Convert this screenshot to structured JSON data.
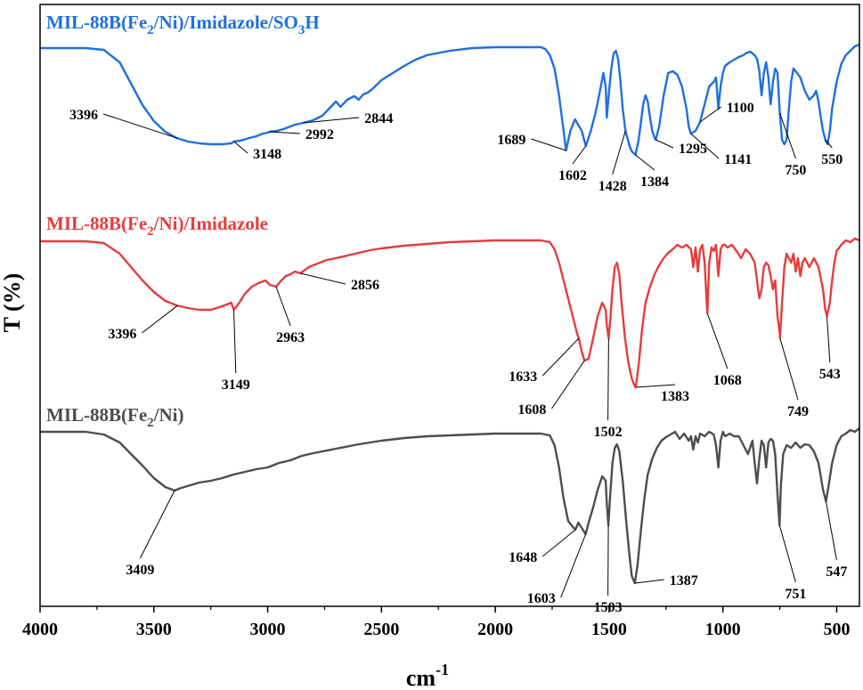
{
  "chart_data": {
    "type": "line",
    "xlabel": "cm",
    "xlabel_sup": "-1",
    "ylabel": "T (%)",
    "xlim": [
      4000,
      400
    ],
    "x_reversed": true,
    "xticks": [
      "4000",
      "3500",
      "3000",
      "2500",
      "2000",
      "1500",
      "1000",
      "500"
    ],
    "y_ticks_shown": false,
    "grid": false,
    "series": [
      {
        "name_parts": [
          "MIL-88B(Fe",
          "2",
          "/Ni)/Imidazole/SO",
          "3",
          "H"
        ],
        "color": "#1f6fe0",
        "x": [
          4000,
          3800,
          3720,
          3650,
          3600,
          3550,
          3500,
          3450,
          3400,
          3350,
          3300,
          3250,
          3200,
          3160,
          3148,
          3120,
          3080,
          3050,
          3020,
          3000,
          2992,
          2960,
          2930,
          2900,
          2880,
          2860,
          2844,
          2800,
          2760,
          2730,
          2700,
          2680,
          2650,
          2620,
          2600,
          2580,
          2560,
          2540,
          2500,
          2450,
          2400,
          2350,
          2300,
          2200,
          2100,
          2000,
          1900,
          1800,
          1780,
          1760,
          1740,
          1720,
          1700,
          1689,
          1670,
          1650,
          1620,
          1602,
          1580,
          1560,
          1540,
          1525,
          1515,
          1510,
          1500,
          1490,
          1480,
          1470,
          1460,
          1450,
          1440,
          1428,
          1410,
          1400,
          1384,
          1370,
          1360,
          1350,
          1340,
          1330,
          1320,
          1310,
          1300,
          1295,
          1280,
          1260,
          1240,
          1220,
          1200,
          1180,
          1160,
          1150,
          1141,
          1120,
          1100,
          1080,
          1060,
          1040,
          1030,
          1020,
          1010,
          1000,
          990,
          970,
          950,
          930,
          910,
          900,
          880,
          860,
          850,
          840,
          830,
          820,
          810,
          800,
          790,
          780,
          770,
          760,
          750,
          740,
          730,
          720,
          710,
          700,
          690,
          680,
          660,
          640,
          620,
          600,
          590,
          580,
          570,
          560,
          550,
          540,
          530,
          520,
          500,
          480,
          460,
          440,
          420,
          400
        ],
        "y": [
          0.02,
          0.02,
          0.04,
          0.18,
          0.42,
          0.66,
          0.84,
          0.96,
          1.03,
          1.07,
          1.09,
          1.1,
          1.1,
          1.09,
          1.07,
          1.06,
          1.03,
          1.01,
          0.98,
          0.97,
          0.96,
          0.95,
          0.93,
          0.9,
          0.88,
          0.87,
          0.86,
          0.83,
          0.78,
          0.7,
          0.62,
          0.68,
          0.6,
          0.56,
          0.6,
          0.54,
          0.52,
          0.48,
          0.38,
          0.3,
          0.22,
          0.15,
          0.1,
          0.05,
          0.02,
          0.01,
          0.01,
          0.01,
          0.03,
          0.1,
          0.25,
          0.55,
          0.95,
          1.17,
          0.95,
          0.82,
          0.95,
          1.12,
          0.95,
          0.75,
          0.5,
          0.3,
          0.45,
          0.8,
          0.5,
          0.25,
          0.08,
          0.05,
          0.15,
          0.4,
          0.7,
          0.95,
          1.12,
          1.18,
          1.22,
          1.05,
          0.85,
          0.65,
          0.55,
          0.62,
          0.8,
          0.95,
          1.03,
          1.05,
          0.9,
          0.55,
          0.3,
          0.28,
          0.32,
          0.45,
          0.7,
          0.9,
          0.98,
          0.95,
          0.85,
          0.65,
          0.45,
          0.4,
          0.35,
          0.7,
          0.45,
          0.3,
          0.22,
          0.18,
          0.15,
          0.12,
          0.1,
          0.08,
          0.06,
          0.1,
          0.14,
          0.28,
          0.55,
          0.3,
          0.18,
          0.35,
          0.65,
          0.4,
          0.25,
          0.3,
          0.75,
          1.05,
          1.1,
          1.05,
          0.7,
          0.4,
          0.25,
          0.28,
          0.35,
          0.5,
          0.6,
          0.55,
          0.5,
          0.62,
          0.8,
          0.95,
          1.05,
          1.1,
          0.95,
          0.7,
          0.4,
          0.2,
          0.1,
          0.05,
          0.0,
          -0.02
        ]
      },
      {
        "name_parts": [
          "MIL-88B(Fe",
          "2",
          "/Ni)/Imidazole"
        ],
        "color": "#e63c3c",
        "x": [
          4000,
          3800,
          3720,
          3650,
          3600,
          3550,
          3500,
          3450,
          3400,
          3350,
          3300,
          3250,
          3200,
          3160,
          3149,
          3130,
          3100,
          3070,
          3040,
          3010,
          2990,
          2963,
          2940,
          2920,
          2900,
          2880,
          2856,
          2820,
          2780,
          2740,
          2700,
          2650,
          2600,
          2550,
          2500,
          2400,
          2300,
          2200,
          2100,
          2000,
          1900,
          1800,
          1760,
          1740,
          1720,
          1700,
          1680,
          1660,
          1640,
          1633,
          1620,
          1608,
          1590,
          1570,
          1550,
          1530,
          1515,
          1510,
          1502,
          1495,
          1485,
          1475,
          1465,
          1455,
          1445,
          1430,
          1415,
          1400,
          1390,
          1383,
          1370,
          1355,
          1340,
          1320,
          1300,
          1280,
          1260,
          1240,
          1220,
          1200,
          1180,
          1160,
          1140,
          1130,
          1120,
          1110,
          1100,
          1090,
          1080,
          1070,
          1068,
          1060,
          1050,
          1040,
          1030,
          1020,
          1010,
          1000,
          990,
          980,
          960,
          940,
          920,
          900,
          880,
          860,
          850,
          840,
          830,
          820,
          810,
          800,
          790,
          780,
          770,
          760,
          750,
          749,
          740,
          730,
          720,
          700,
          690,
          680,
          670,
          660,
          650,
          640,
          620,
          600,
          580,
          560,
          550,
          543,
          530,
          520,
          510,
          500,
          480,
          460,
          440,
          420,
          400
        ],
        "y": [
          0.01,
          0.01,
          0.03,
          0.15,
          0.3,
          0.45,
          0.58,
          0.68,
          0.73,
          0.76,
          0.78,
          0.78,
          0.74,
          0.7,
          0.78,
          0.72,
          0.6,
          0.52,
          0.48,
          0.45,
          0.5,
          0.52,
          0.45,
          0.4,
          0.38,
          0.35,
          0.37,
          0.3,
          0.26,
          0.22,
          0.2,
          0.17,
          0.14,
          0.11,
          0.09,
          0.06,
          0.04,
          0.02,
          0.01,
          0.0,
          0.0,
          0.0,
          0.02,
          0.1,
          0.25,
          0.45,
          0.65,
          0.85,
          1.05,
          1.1,
          1.25,
          1.35,
          1.33,
          1.1,
          0.85,
          0.7,
          0.78,
          0.95,
          1.1,
          0.9,
          0.55,
          0.3,
          0.25,
          0.38,
          0.7,
          1.1,
          1.38,
          1.55,
          1.62,
          1.65,
          1.4,
          1.0,
          0.7,
          0.52,
          0.38,
          0.28,
          0.2,
          0.14,
          0.1,
          0.05,
          0.08,
          0.05,
          0.1,
          0.3,
          0.08,
          0.35,
          0.1,
          0.05,
          0.25,
          0.75,
          0.82,
          0.25,
          0.08,
          0.12,
          0.05,
          0.4,
          0.1,
          0.05,
          0.05,
          0.08,
          0.05,
          0.12,
          0.2,
          0.1,
          0.15,
          0.25,
          0.45,
          0.65,
          0.55,
          0.3,
          0.25,
          0.28,
          0.4,
          0.55,
          0.45,
          0.85,
          1.05,
          1.1,
          0.7,
          0.3,
          0.15,
          0.25,
          0.15,
          0.35,
          0.2,
          0.4,
          0.25,
          0.2,
          0.3,
          0.2,
          0.3,
          0.55,
          0.78,
          0.85,
          0.7,
          0.45,
          0.25,
          0.12,
          0.05,
          0.0,
          0.02,
          -0.02,
          0.0
        ]
      },
      {
        "name_parts": [
          "MIL-88B(Fe",
          "2",
          "/Ni)"
        ],
        "color": "#4d4d4d",
        "x": [
          4000,
          3800,
          3720,
          3650,
          3600,
          3550,
          3500,
          3450,
          3409,
          3380,
          3340,
          3300,
          3250,
          3200,
          3150,
          3100,
          3050,
          3000,
          2950,
          2900,
          2850,
          2800,
          2700,
          2600,
          2500,
          2400,
          2300,
          2200,
          2100,
          2000,
          1900,
          1800,
          1760,
          1740,
          1720,
          1700,
          1680,
          1665,
          1648,
          1635,
          1620,
          1603,
          1590,
          1570,
          1550,
          1530,
          1515,
          1510,
          1503,
          1495,
          1485,
          1475,
          1465,
          1455,
          1440,
          1425,
          1410,
          1400,
          1387,
          1375,
          1360,
          1345,
          1330,
          1310,
          1290,
          1270,
          1250,
          1230,
          1210,
          1190,
          1170,
          1150,
          1140,
          1130,
          1120,
          1110,
          1100,
          1080,
          1060,
          1040,
          1030,
          1020,
          1010,
          1000,
          990,
          970,
          950,
          930,
          910,
          890,
          870,
          860,
          850,
          840,
          830,
          820,
          810,
          800,
          790,
          780,
          770,
          760,
          751,
          745,
          735,
          720,
          700,
          680,
          660,
          640,
          620,
          600,
          580,
          560,
          547,
          535,
          520,
          500,
          480,
          460,
          440,
          420,
          400
        ],
        "y": [
          0.0,
          0.0,
          0.03,
          0.12,
          0.25,
          0.38,
          0.52,
          0.62,
          0.66,
          0.63,
          0.6,
          0.57,
          0.55,
          0.52,
          0.48,
          0.45,
          0.42,
          0.4,
          0.35,
          0.32,
          0.27,
          0.24,
          0.19,
          0.14,
          0.1,
          0.07,
          0.05,
          0.04,
          0.03,
          0.02,
          0.02,
          0.02,
          0.04,
          0.15,
          0.4,
          0.75,
          1.0,
          1.05,
          1.1,
          1.02,
          1.08,
          1.15,
          1.02,
          0.85,
          0.65,
          0.5,
          0.55,
          0.8,
          1.05,
          0.7,
          0.35,
          0.18,
          0.14,
          0.22,
          0.55,
          1.0,
          1.4,
          1.62,
          1.7,
          1.5,
          1.1,
          0.75,
          0.48,
          0.3,
          0.18,
          0.1,
          0.06,
          0.03,
          0.0,
          0.08,
          0.02,
          0.1,
          0.05,
          0.2,
          0.05,
          0.12,
          0.02,
          0.05,
          0.0,
          0.03,
          0.15,
          0.4,
          0.1,
          0.0,
          0.05,
          0.02,
          0.05,
          0.05,
          0.15,
          0.25,
          0.1,
          0.35,
          0.58,
          0.3,
          0.1,
          0.15,
          0.4,
          0.12,
          0.08,
          0.1,
          0.25,
          0.7,
          1.05,
          0.6,
          0.25,
          0.15,
          0.18,
          0.12,
          0.18,
          0.14,
          0.15,
          0.22,
          0.35,
          0.65,
          0.78,
          0.6,
          0.35,
          0.15,
          0.05,
          0.02,
          -0.02,
          0.0,
          -0.04
        ]
      }
    ],
    "annotations": [
      {
        "series": 0,
        "text": "3396",
        "px": 3396,
        "tx": 3730,
        "ty": 0.82,
        "anchor": "end"
      },
      {
        "series": 0,
        "text": "3148",
        "px": 3148,
        "tx": 3080,
        "ty": 1.26,
        "anchor": "start"
      },
      {
        "series": 0,
        "text": "2992",
        "px": 2992,
        "tx": 2850,
        "ty": 1.04,
        "anchor": "start"
      },
      {
        "series": 0,
        "text": "2844",
        "px": 2844,
        "tx": 2590,
        "ty": 0.86,
        "anchor": "start"
      },
      {
        "series": 0,
        "text": "1689",
        "px": 1689,
        "tx": 1850,
        "ty": 1.1,
        "anchor": "end"
      },
      {
        "series": 0,
        "text": "1602",
        "px": 1602,
        "tx": 1660,
        "ty": 1.38,
        "anchor": "middle"
      },
      {
        "series": 0,
        "text": "1428",
        "px": 1428,
        "tx": 1485,
        "ty": 1.5,
        "anchor": "middle"
      },
      {
        "series": 0,
        "text": "1384",
        "px": 1384,
        "tx": 1300,
        "ty": 1.45,
        "anchor": "middle"
      },
      {
        "series": 0,
        "text": "1295",
        "px": 1295,
        "tx": 1210,
        "ty": 1.2,
        "anchor": "start"
      },
      {
        "series": 0,
        "text": "1100",
        "px": 1100,
        "tx": 1000,
        "ty": 0.74,
        "anchor": "start"
      },
      {
        "series": 0,
        "text": "1141",
        "px": 1141,
        "tx": 1010,
        "ty": 1.32,
        "anchor": "start"
      },
      {
        "series": 0,
        "text": "750",
        "px": 750,
        "tx": 680,
        "ty": 1.32,
        "anchor": "middle"
      },
      {
        "series": 0,
        "text": "550",
        "px": 550,
        "tx": 520,
        "ty": 1.2,
        "anchor": "middle"
      },
      {
        "series": 1,
        "text": "3396",
        "px": 3396,
        "tx": 3560,
        "ty": 1.1,
        "anchor": "end"
      },
      {
        "series": 1,
        "text": "3149",
        "px": 3149,
        "tx": 3140,
        "ty": 1.55,
        "anchor": "middle"
      },
      {
        "series": 1,
        "text": "2963",
        "px": 2963,
        "tx": 2900,
        "ty": 1.02,
        "anchor": "middle"
      },
      {
        "series": 1,
        "text": "2856",
        "px": 2856,
        "tx": 2650,
        "ty": 0.55,
        "anchor": "start"
      },
      {
        "series": 1,
        "text": "1633",
        "px": 1633,
        "tx": 1800,
        "ty": 1.58,
        "anchor": "end"
      },
      {
        "series": 1,
        "text": "1608",
        "px": 1608,
        "tx": 1760,
        "ty": 1.95,
        "anchor": "end"
      },
      {
        "series": 1,
        "text": "1502",
        "px": 1502,
        "tx": 1505,
        "ty": 2.08,
        "anchor": "middle"
      },
      {
        "series": 1,
        "text": "1383",
        "px": 1383,
        "tx": 1210,
        "ty": 1.68,
        "anchor": "middle"
      },
      {
        "series": 1,
        "text": "1068",
        "px": 1068,
        "tx": 980,
        "ty": 1.5,
        "anchor": "middle"
      },
      {
        "series": 1,
        "text": "749",
        "px": 749,
        "tx": 670,
        "ty": 1.85,
        "anchor": "middle"
      },
      {
        "series": 1,
        "text": "543",
        "px": 543,
        "tx": 530,
        "ty": 1.43,
        "anchor": "middle"
      },
      {
        "series": 2,
        "text": "3409",
        "px": 3409,
        "tx": 3560,
        "ty": 1.48,
        "anchor": "middle"
      },
      {
        "series": 2,
        "text": "1648",
        "px": 1648,
        "tx": 1800,
        "ty": 1.46,
        "anchor": "end"
      },
      {
        "series": 2,
        "text": "1603",
        "px": 1603,
        "tx": 1720,
        "ty": 1.92,
        "anchor": "end"
      },
      {
        "series": 2,
        "text": "1503",
        "px": 1503,
        "tx": 1505,
        "ty": 1.9,
        "anchor": "middle"
      },
      {
        "series": 2,
        "text": "1387",
        "px": 1387,
        "tx": 1250,
        "ty": 1.72,
        "anchor": "start"
      },
      {
        "series": 2,
        "text": "751",
        "px": 751,
        "tx": 680,
        "ty": 1.75,
        "anchor": "middle"
      },
      {
        "series": 2,
        "text": "547",
        "px": 547,
        "tx": 500,
        "ty": 1.5,
        "anchor": "middle"
      }
    ]
  }
}
